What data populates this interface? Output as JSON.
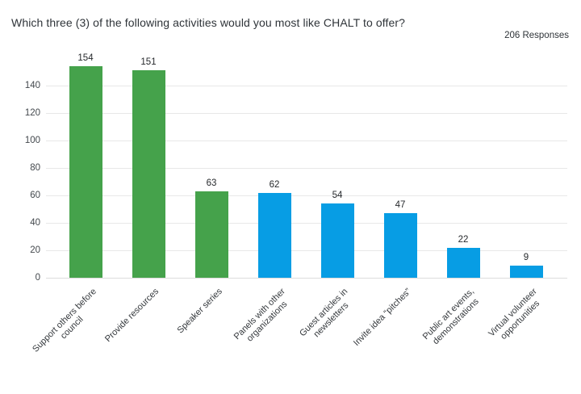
{
  "header": {
    "title": "Which three (3) of the following activities would you most like CHALT to offer?",
    "responses": "206 Responses"
  },
  "chart_data": {
    "type": "bar",
    "title": "Which three (3) of the following activities would you most like CHALT to offer?",
    "subtitle": "206 Responses",
    "categories": [
      "Support others before council",
      "Provide resources",
      "Speaker series",
      "Panels with other organizations",
      "Guest articles in newsletters",
      "Invite idea “pitches”",
      "Public art events, demonstrations",
      "Virtual volunteer opportunities"
    ],
    "category_lines": [
      [
        "Support others before",
        "council"
      ],
      [
        "Provide resources"
      ],
      [
        "Speaker series"
      ],
      [
        "Panels with other",
        "organizations"
      ],
      [
        "Guest articles in",
        "newsletters"
      ],
      [
        "Invite idea “pitches”"
      ],
      [
        "Public art events,",
        "demonstrations"
      ],
      [
        "Virtual volunteer",
        "opportunities"
      ]
    ],
    "values": [
      154,
      151,
      63,
      62,
      54,
      47,
      22,
      9
    ],
    "bar_colors": [
      "#45a24b",
      "#45a24b",
      "#45a24b",
      "#079de4",
      "#079de4",
      "#079de4",
      "#079de4",
      "#079de4"
    ],
    "y_ticks": [
      0,
      20,
      40,
      60,
      80,
      100,
      120,
      140
    ],
    "ylim": [
      0,
      160
    ],
    "xlabel": "",
    "ylabel": "",
    "grid": true,
    "legend": "none",
    "colors": {
      "green": "#45a24b",
      "blue": "#079de4",
      "grid": "#e8e8e8",
      "text": "#2f3439"
    }
  }
}
